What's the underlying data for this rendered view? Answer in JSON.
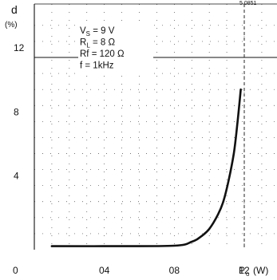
{
  "chart_data": {
    "type": "line",
    "title": "",
    "corner_label": "5 0851",
    "ylabel": "d",
    "ylabel_unit": "(%)",
    "xlabel": "P",
    "xlabel_sub": "o",
    "xlabel_unit": "(W)",
    "xlim": [
      0,
      1.2
    ],
    "ylim": [
      0,
      12
    ],
    "x_ticks": [
      {
        "value": 0.4,
        "label": "04"
      },
      {
        "value": 0.8,
        "label": "08"
      },
      {
        "value": 1.2,
        "label": "12"
      }
    ],
    "y_ticks": [
      {
        "value": 4,
        "label": "4"
      },
      {
        "value": 8,
        "label": "8"
      },
      {
        "value": 12,
        "label": "12"
      }
    ],
    "origin_label": "0",
    "grid": true,
    "annotations": [
      {
        "text": "V",
        "sub": "S",
        "rest": " = 9 V"
      },
      {
        "text": "R",
        "sub": "L",
        "rest": " = 8 Ω"
      },
      {
        "text": "Rf = 120 Ω",
        "sub": "",
        "rest": ""
      },
      {
        "text": "f = 1kHz",
        "sub": "",
        "rest": ""
      }
    ],
    "series": [
      {
        "x": [
          0.1,
          0.4,
          0.8,
          0.9,
          0.95,
          1.0,
          1.05,
          1.08,
          1.11,
          1.14,
          1.16,
          1.18
        ],
        "y": [
          0.22,
          0.22,
          0.25,
          0.5,
          0.8,
          1.3,
          2.2,
          3.0,
          4.3,
          6.0,
          7.8,
          10.0
        ]
      }
    ],
    "line_color": "#111111"
  }
}
